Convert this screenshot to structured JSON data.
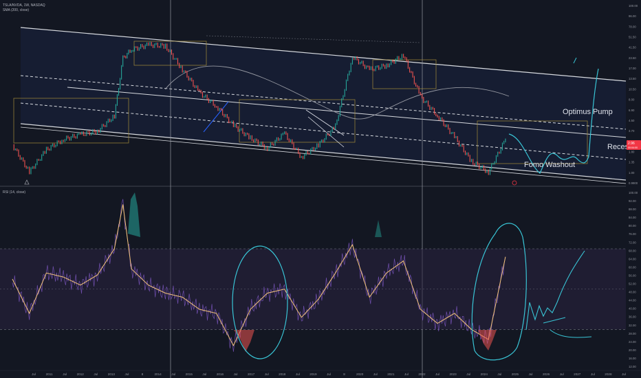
{
  "header": {
    "symbol_line": "TSLA/NVDA, 1W, NASDAQ",
    "sma_line": "SMA (200, close)",
    "rsi_line": "RSI (14, close)"
  },
  "annotations": {
    "optimus": "Optimus Pump",
    "recession": "Recess",
    "fomo": "Fomo Washout"
  },
  "colors": {
    "background": "#131722",
    "channel_fill": "#1a2340",
    "rsi_band": "#2a2340",
    "up": "#26a69a",
    "down": "#ef5350",
    "drawing": "#39c5d6",
    "sma": "#9598a1",
    "rsi_line": "#7e57c2",
    "rsi_ma": "#f6c67a",
    "current_price_tag": "#f23645"
  },
  "chart_data": [
    {
      "type": "line",
      "y_scale": "log",
      "title": "",
      "price_axis_ticks": [
        "100.00",
        "96.00",
        "78.00",
        "51.50",
        "41.50",
        "23.50",
        "17.00",
        "13.50",
        "10.50",
        "8.00",
        "6.90",
        "4.50",
        "3.70",
        "2.70",
        "1.80",
        "1.35",
        "1.00",
        "0.9900"
      ],
      "current_price_label": "2.96",
      "current_price_sublabel": "00:04:00",
      "series": [
        {
          "name": "",
          "x": [
            "2010-07",
            "2011-01",
            "2011-07",
            "2012-01",
            "2012-07",
            "2013-01",
            "2013-07",
            "2013-10",
            "2014-01",
            "2014-07",
            "2015-01",
            "2015-07",
            "2016-01",
            "2016-07",
            "2017-01",
            "2017-07",
            "2018-01",
            "2018-07",
            "2019-01",
            "2019-07",
            "2020-01",
            "2020-07",
            "2021-01",
            "2021-07",
            "2022-01",
            "2022-07",
            "2023-01",
            "2023-07",
            "2024-01",
            "2024-07",
            "2025-01"
          ],
          "y": [
            2.6,
            1.3,
            2.3,
            3.0,
            3.4,
            3.7,
            5.5,
            24,
            30,
            34,
            33,
            18,
            10,
            7,
            4.3,
            3.1,
            2.4,
            3.5,
            1.9,
            2.6,
            4.2,
            25,
            18,
            20,
            26,
            9,
            5.5,
            3.2,
            1.7,
            1.3,
            3.0
          ]
        }
      ]
    },
    {
      "type": "line",
      "title": "",
      "ylim": [
        10,
        100
      ],
      "rsi_axis_ticks": [
        "100.00",
        "92.00",
        "88.00",
        "84.00",
        "80.00",
        "76.00",
        "72.00",
        "68.00",
        "64.00",
        "60.00",
        "56.00",
        "52.00",
        "48.00",
        "44.00",
        "40.00",
        "36.00",
        "32.00",
        "28.00",
        "24.00",
        "20.00",
        "16.00",
        "12.00"
      ],
      "bands": {
        "upper": 70,
        "lower": 30
      },
      "series": [
        {
          "name": "",
          "x": [
            "2010-07",
            "2011-01",
            "2011-07",
            "2012-01",
            "2012-07",
            "2013-01",
            "2013-07",
            "2013-10",
            "2014-01",
            "2014-07",
            "2015-01",
            "2015-07",
            "2016-01",
            "2016-07",
            "2017-01",
            "2017-07",
            "2018-01",
            "2018-07",
            "2019-01",
            "2019-07",
            "2020-01",
            "2020-07",
            "2021-01",
            "2021-07",
            "2022-01",
            "2022-07",
            "2023-01",
            "2023-07",
            "2024-01",
            "2024-07",
            "2025-01"
          ],
          "y": [
            55,
            38,
            58,
            56,
            52,
            57,
            70,
            92,
            60,
            52,
            48,
            46,
            40,
            38,
            22,
            40,
            48,
            50,
            36,
            45,
            58,
            72,
            46,
            58,
            64,
            40,
            33,
            38,
            30,
            25,
            66
          ]
        }
      ]
    }
  ],
  "time_axis": [
    "Jul",
    "2011",
    "Jul",
    "2012",
    "Jul",
    "2013",
    "Jul",
    "8",
    "2014",
    "Jul",
    "2015",
    "Jul",
    "2016",
    "Jul",
    "2017",
    "Jul",
    "2018",
    "Jul",
    "2019",
    "Jul",
    "8",
    "2020",
    "Jul",
    "2021",
    "Jul",
    "2022",
    "Jul",
    "2023",
    "Jul",
    "2024",
    "Jul",
    "2025",
    "Jul",
    "2026",
    "Jul",
    "2027",
    "Jul",
    "2028",
    "Jul"
  ]
}
